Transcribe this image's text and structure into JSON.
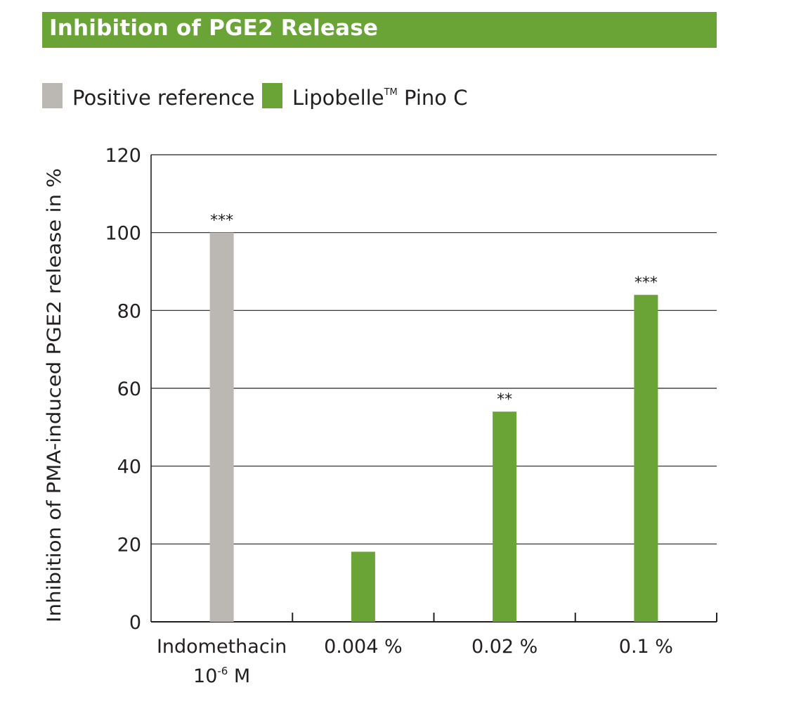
{
  "header": {
    "title": "Inhibition of PGE2 Release"
  },
  "legend": {
    "items": [
      {
        "label": "Positive reference",
        "tm": "",
        "suffix": "",
        "color": "#bbb8b4"
      },
      {
        "label": "Lipobelle",
        "tm": "TM",
        "suffix": " Pino C",
        "color": "#6aa336"
      }
    ]
  },
  "colors": {
    "title_bg": "#6aa336",
    "positive": "#bbb8b4",
    "product": "#6aa336",
    "text": "#231f20"
  },
  "chart_data": {
    "type": "bar",
    "title": "Inhibition of PGE2 Release",
    "ylabel": "Inhibition of PMA-induced PGE2 release in %",
    "xlabel": "",
    "ylim": [
      0,
      120
    ],
    "yticks": [
      0,
      20,
      40,
      60,
      80,
      100,
      120
    ],
    "grid": true,
    "legend_position": "top-left",
    "categories": [
      {
        "line1": "Indomethacin",
        "line2": "10",
        "line2_sup": "-6",
        "line2_suffix": " M"
      },
      {
        "line1": "0.004 %",
        "line2": "",
        "line2_sup": "",
        "line2_suffix": ""
      },
      {
        "line1": "0.02 %",
        "line2": "",
        "line2_sup": "",
        "line2_suffix": ""
      },
      {
        "line1": "0.1 %",
        "line2": "",
        "line2_sup": "",
        "line2_suffix": ""
      }
    ],
    "series": [
      {
        "name": "Positive reference",
        "values": [
          100,
          null,
          null,
          null
        ]
      },
      {
        "name": "Lipobelle™ Pino C",
        "values": [
          null,
          18,
          54,
          84
        ]
      }
    ],
    "values": [
      100,
      18,
      54,
      84
    ],
    "bar_series": [
      0,
      1,
      1,
      1
    ],
    "significance": [
      "***",
      "",
      "**",
      "***"
    ]
  }
}
